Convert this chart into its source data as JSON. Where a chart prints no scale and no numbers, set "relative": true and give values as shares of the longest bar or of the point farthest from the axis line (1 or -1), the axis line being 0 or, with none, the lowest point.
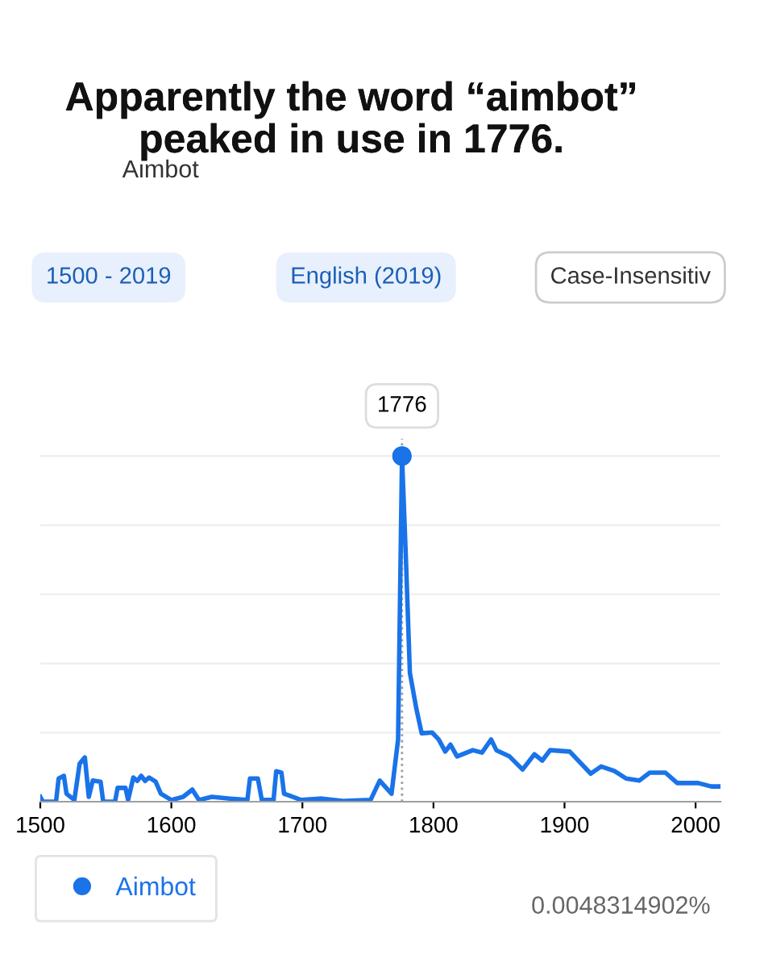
{
  "chart_data": {
    "type": "line",
    "title": "Apparently the word “aimbot” peaked in use in 1776.",
    "relative": true,
    "xlim": [
      1500,
      2019
    ],
    "xticks": [
      1500,
      1600,
      1700,
      1800,
      1900,
      2000
    ],
    "grid": "y",
    "legend": "bottom",
    "marker": "none",
    "line_style": "solid",
    "ref_lines": [
      {
        "axis": "x",
        "value": 1776,
        "label": "1776",
        "color": "#9e9e9e",
        "line_style": "dotted"
      }
    ],
    "annotations": [
      "0.0048314902%",
      "Aimbot",
      "1500 - 2019",
      "English (2019)",
      "Case-Insensitiv"
    ],
    "series": [
      {
        "name": "Aimbot",
        "color": "#1a73e8",
        "x": [
          1500,
          1502,
          1512,
          1514,
          1518,
          1520,
          1526,
          1530,
          1534,
          1537,
          1540,
          1546,
          1548,
          1557,
          1559,
          1565,
          1567,
          1571,
          1574,
          1577,
          1580,
          1583,
          1588,
          1592,
          1600,
          1609,
          1616,
          1621,
          1631,
          1645,
          1658,
          1660,
          1666,
          1669,
          1678,
          1680,
          1684,
          1686,
          1690,
          1699,
          1715,
          1732,
          1752,
          1759,
          1763,
          1768,
          1773,
          1776,
          1779,
          1782,
          1787,
          1791,
          1799,
          1804,
          1809,
          1813,
          1818,
          1830,
          1837,
          1844,
          1848,
          1858,
          1868,
          1877,
          1883,
          1889,
          1904,
          1920,
          1928,
          1938,
          1947,
          1957,
          1965,
          1977,
          1986,
          2002,
          2012,
          2019
        ],
        "values": [
          0.014,
          0,
          0,
          0.067,
          0.075,
          0.023,
          0.005,
          0.11,
          0.128,
          0.014,
          0.061,
          0.058,
          0,
          0,
          0.04,
          0.04,
          0.005,
          0.07,
          0.06,
          0.075,
          0.06,
          0.07,
          0.058,
          0.023,
          0.005,
          0.014,
          0.035,
          0.005,
          0.014,
          0.009,
          0.005,
          0.067,
          0.067,
          0.005,
          0.005,
          0.088,
          0.084,
          0.023,
          0.018,
          0.005,
          0.009,
          0.002,
          0.005,
          0.061,
          0.044,
          0.023,
          0.18,
          1.0,
          0.7,
          0.373,
          0.268,
          0.198,
          0.2,
          0.18,
          0.145,
          0.165,
          0.131,
          0.149,
          0.142,
          0.18,
          0.149,
          0.131,
          0.093,
          0.137,
          0.119,
          0.149,
          0.145,
          0.081,
          0.102,
          0.089,
          0.067,
          0.061,
          0.084,
          0.084,
          0.054,
          0.054,
          0.044,
          0.044
        ]
      },
      {
        "type": "scatter",
        "color": "#1a73e8",
        "marker": "circle",
        "x": [
          1776
        ],
        "values": [
          1.0
        ]
      }
    ]
  }
}
